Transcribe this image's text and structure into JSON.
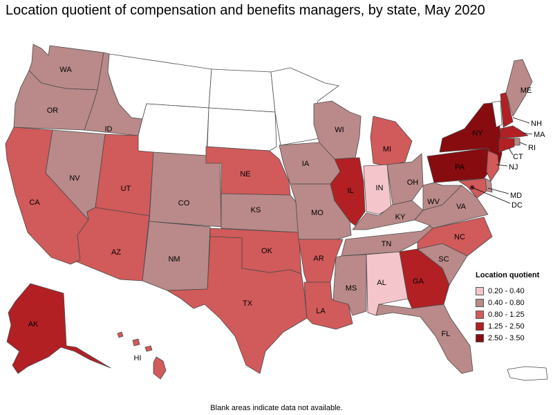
{
  "title": "Location quotient of compensation and benefits managers, by state, May 2020",
  "note": "Blank areas indicate data not available.",
  "legend": {
    "title": "Location quotient",
    "items": [
      {
        "label": "0.20 - 0.40",
        "color": "#f4c6cc"
      },
      {
        "label": "0.40 - 0.80",
        "color": "#b98a89"
      },
      {
        "label": "0.80 - 1.25",
        "color": "#d15a5a"
      },
      {
        "label": "1.25 - 2.50",
        "color": "#b22024"
      },
      {
        "label": "2.50 - 3.50",
        "color": "#870c10"
      }
    ]
  },
  "states": {
    "WA": {
      "label": "WA",
      "bin": 1
    },
    "OR": {
      "label": "OR",
      "bin": 1
    },
    "ID": {
      "label": "ID",
      "bin": 1
    },
    "MT": {
      "label": "",
      "bin": null
    },
    "WY": {
      "label": "",
      "bin": null
    },
    "ND": {
      "label": "",
      "bin": null
    },
    "SD": {
      "label": "",
      "bin": null
    },
    "MN": {
      "label": "",
      "bin": null
    },
    "CA": {
      "label": "CA",
      "bin": 2
    },
    "NV": {
      "label": "NV",
      "bin": 1
    },
    "UT": {
      "label": "UT",
      "bin": 2
    },
    "AZ": {
      "label": "AZ",
      "bin": 2
    },
    "CO": {
      "label": "CO",
      "bin": 1
    },
    "NM": {
      "label": "NM",
      "bin": 1
    },
    "NE": {
      "label": "NE",
      "bin": 2
    },
    "KS": {
      "label": "KS",
      "bin": 1
    },
    "OK": {
      "label": "OK",
      "bin": 2
    },
    "TX": {
      "label": "TX",
      "bin": 2
    },
    "IA": {
      "label": "IA",
      "bin": 1
    },
    "MO": {
      "label": "MO",
      "bin": 1
    },
    "AR": {
      "label": "AR",
      "bin": 2
    },
    "LA": {
      "label": "LA",
      "bin": 2
    },
    "WI": {
      "label": "WI",
      "bin": 1
    },
    "IL": {
      "label": "IL",
      "bin": 3
    },
    "MI": {
      "label": "MI",
      "bin": 2
    },
    "IN": {
      "label": "IN",
      "bin": 0
    },
    "OH": {
      "label": "OH",
      "bin": 1
    },
    "KY": {
      "label": "KY",
      "bin": 1
    },
    "TN": {
      "label": "TN",
      "bin": 1
    },
    "MS": {
      "label": "MS",
      "bin": 1
    },
    "AL": {
      "label": "AL",
      "bin": 0
    },
    "GA": {
      "label": "GA",
      "bin": 3
    },
    "FL": {
      "label": "FL",
      "bin": 1
    },
    "SC": {
      "label": "SC",
      "bin": 1
    },
    "NC": {
      "label": "NC",
      "bin": 2
    },
    "VA": {
      "label": "VA",
      "bin": 1
    },
    "WV": {
      "label": "WV",
      "bin": 1
    },
    "PA": {
      "label": "PA",
      "bin": 4
    },
    "NY": {
      "label": "NY",
      "bin": 4
    },
    "VT": {
      "label": "VT",
      "bin": null
    },
    "NH": {
      "label": "NH",
      "bin": 3
    },
    "ME": {
      "label": "ME",
      "bin": 1
    },
    "MA": {
      "label": "MA",
      "bin": 3
    },
    "RI": {
      "label": "RI",
      "bin": 1
    },
    "CT": {
      "label": "CT",
      "bin": 3
    },
    "NJ": {
      "label": "NJ",
      "bin": 2
    },
    "DE": {
      "label": "",
      "bin": 1
    },
    "MD": {
      "label": "MD",
      "bin": 2
    },
    "DC": {
      "label": "DC",
      "bin": 4
    },
    "AK": {
      "label": "AK",
      "bin": 3
    },
    "HI": {
      "label": "HI",
      "bin": 2
    },
    "PR": {
      "label": "",
      "bin": null
    }
  }
}
